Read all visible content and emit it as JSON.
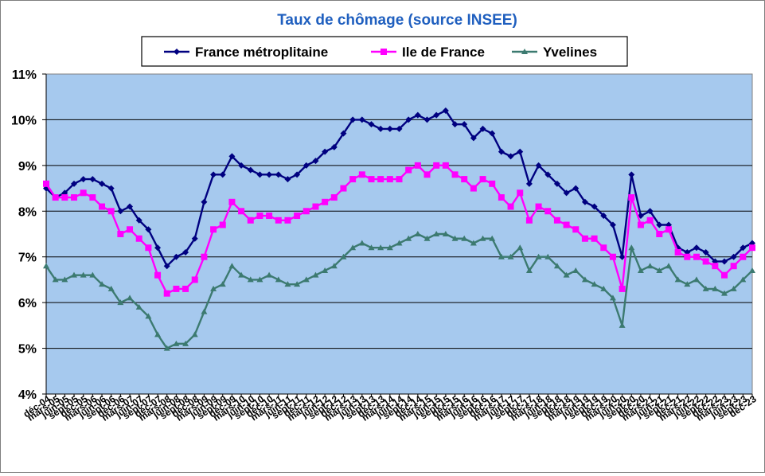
{
  "chart_data": {
    "type": "line",
    "title": "Taux de chômage (source INSEE)",
    "xlabel": "",
    "ylabel": "",
    "ylim": [
      4,
      11
    ],
    "y_ticks": [
      4,
      5,
      6,
      7,
      8,
      9,
      10,
      11
    ],
    "y_tick_labels": [
      "4%",
      "5%",
      "6%",
      "7%",
      "8%",
      "9%",
      "10%",
      "11%"
    ],
    "grid": "horizontal",
    "legend_position": "top",
    "plot_background": "#a6c9ee",
    "x": [
      "déc-04",
      "mars-05",
      "juin-05",
      "sept-05",
      "déc-05",
      "mars-06",
      "juin-06",
      "sept-06",
      "déc-06",
      "mars-07",
      "juin-07",
      "sept-07",
      "déc-07",
      "mars-08",
      "juin-08",
      "sept-08",
      "déc-08",
      "mars-09",
      "juin-09",
      "sept-09",
      "déc-09",
      "mars-10",
      "juin-10",
      "sept-10",
      "déc-10",
      "mars-11",
      "juin-11",
      "sept-11",
      "déc-11",
      "mars-12",
      "juin-12",
      "sept-12",
      "déc-12",
      "mars-13",
      "juin-13",
      "sept-13",
      "déc-13",
      "mars-14",
      "juin-14",
      "sept-14",
      "déc-14",
      "mars-15",
      "juin-15",
      "sept-15",
      "déc-15",
      "mars-16",
      "juin-16",
      "sept-16",
      "déc-16",
      "mars-17",
      "juin-17",
      "sept-17",
      "déc-17",
      "mars-18",
      "juin-18",
      "sept-18",
      "déc-18",
      "mars-19",
      "juin-19",
      "sept-19",
      "déc-19",
      "mars-20",
      "juin-20",
      "sept-20",
      "déc-20",
      "mars-21",
      "juin-21",
      "sept-21",
      "déc-21",
      "mars-22",
      "juin-22",
      "sept-22",
      "déc-22",
      "mars-23",
      "juin-23",
      "sept-23",
      "déc-23"
    ],
    "series": [
      {
        "name": "France métroplitaine",
        "color": "#000080",
        "marker": "diamond",
        "values": [
          8.5,
          8.3,
          8.4,
          8.6,
          8.7,
          8.7,
          8.6,
          8.5,
          8.0,
          8.1,
          7.8,
          7.6,
          7.2,
          6.8,
          7.0,
          7.1,
          7.4,
          8.2,
          8.8,
          8.8,
          9.2,
          9.0,
          8.9,
          8.8,
          8.8,
          8.8,
          8.7,
          8.8,
          9.0,
          9.1,
          9.3,
          9.4,
          9.7,
          10.0,
          10.0,
          9.9,
          9.8,
          9.8,
          9.8,
          10.0,
          10.1,
          10.0,
          10.1,
          10.2,
          9.9,
          9.9,
          9.6,
          9.8,
          9.7,
          9.3,
          9.2,
          9.3,
          8.6,
          9.0,
          8.8,
          8.6,
          8.4,
          8.5,
          8.2,
          8.1,
          7.9,
          7.7,
          7.0,
          8.8,
          7.9,
          8.0,
          7.7,
          7.7,
          7.2,
          7.1,
          7.2,
          7.1,
          6.9,
          6.9,
          7.0,
          7.2,
          7.3
        ]
      },
      {
        "name": "Ile de France",
        "color": "#ff00ff",
        "marker": "square",
        "values": [
          8.6,
          8.3,
          8.3,
          8.3,
          8.4,
          8.3,
          8.1,
          8.0,
          7.5,
          7.6,
          7.4,
          7.2,
          6.6,
          6.2,
          6.3,
          6.3,
          6.5,
          7.0,
          7.6,
          7.7,
          8.2,
          8.0,
          7.8,
          7.9,
          7.9,
          7.8,
          7.8,
          7.9,
          8.0,
          8.1,
          8.2,
          8.3,
          8.5,
          8.7,
          8.8,
          8.7,
          8.7,
          8.7,
          8.7,
          8.9,
          9.0,
          8.8,
          9.0,
          9.0,
          8.8,
          8.7,
          8.5,
          8.7,
          8.6,
          8.3,
          8.1,
          8.4,
          7.8,
          8.1,
          8.0,
          7.8,
          7.7,
          7.6,
          7.4,
          7.4,
          7.2,
          7.0,
          6.3,
          8.3,
          7.7,
          7.8,
          7.5,
          7.6,
          7.1,
          7.0,
          7.0,
          6.9,
          6.8,
          6.6,
          6.8,
          7.0,
          7.2
        ]
      },
      {
        "name": "Yvelines",
        "color": "#3c7a70",
        "marker": "triangle",
        "values": [
          6.8,
          6.5,
          6.5,
          6.6,
          6.6,
          6.6,
          6.4,
          6.3,
          6.0,
          6.1,
          5.9,
          5.7,
          5.3,
          5.0,
          5.1,
          5.1,
          5.3,
          5.8,
          6.3,
          6.4,
          6.8,
          6.6,
          6.5,
          6.5,
          6.6,
          6.5,
          6.4,
          6.4,
          6.5,
          6.6,
          6.7,
          6.8,
          7.0,
          7.2,
          7.3,
          7.2,
          7.2,
          7.2,
          7.3,
          7.4,
          7.5,
          7.4,
          7.5,
          7.5,
          7.4,
          7.4,
          7.3,
          7.4,
          7.4,
          7.0,
          7.0,
          7.2,
          6.7,
          7.0,
          7.0,
          6.8,
          6.6,
          6.7,
          6.5,
          6.4,
          6.3,
          6.1,
          5.5,
          7.2,
          6.7,
          6.8,
          6.7,
          6.8,
          6.5,
          6.4,
          6.5,
          6.3,
          6.3,
          6.2,
          6.3,
          6.5,
          6.7
        ]
      }
    ]
  }
}
